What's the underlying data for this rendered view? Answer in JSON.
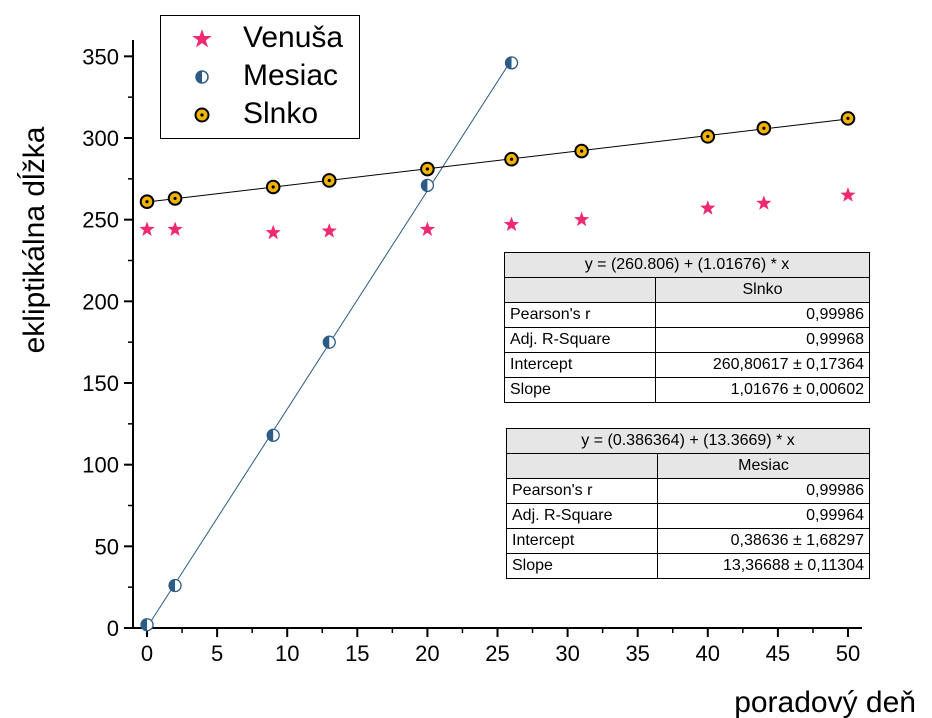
{
  "chart_data": {
    "type": "scatter",
    "xlabel": "poradový deň",
    "ylabel": "ekliptikálna dĺžka",
    "xlim": [
      -1,
      51
    ],
    "ylim": [
      0,
      360
    ],
    "xticks": [
      "0",
      "5",
      "10",
      "15",
      "20",
      "25",
      "30",
      "35",
      "40",
      "45",
      "50"
    ],
    "yticks": [
      "0",
      "50",
      "100",
      "150",
      "200",
      "250",
      "300",
      "350"
    ],
    "legend_position": "top-left",
    "series": [
      {
        "name": "Venuša",
        "marker": "star",
        "color": "#ee2a73",
        "x": [
          0,
          2,
          9,
          13,
          20,
          26,
          31,
          40,
          44,
          50
        ],
        "y": [
          244,
          244,
          242,
          243,
          244,
          247,
          250,
          257,
          260,
          265
        ]
      },
      {
        "name": "Mesiac",
        "marker": "half-filled-circle",
        "color": "#2c5c86",
        "x": [
          0,
          2,
          9,
          13,
          20,
          26
        ],
        "y": [
          2,
          26,
          118,
          175,
          271,
          346
        ],
        "fit": {
          "intercept": 0.386364,
          "slope": 13.3669,
          "x_range": [
            0,
            26
          ],
          "color": "#2c5c86"
        }
      },
      {
        "name": "Slnko",
        "marker": "dotted-circle",
        "color": "#f2b200",
        "x": [
          0,
          2,
          9,
          13,
          20,
          26,
          31,
          40,
          44,
          50
        ],
        "y": [
          261,
          263,
          270,
          274,
          281,
          287,
          292,
          301,
          306,
          312
        ],
        "fit": {
          "intercept": 260.806,
          "slope": 1.01676,
          "x_range": [
            0,
            50
          ],
          "color": "#000000"
        }
      }
    ]
  },
  "fit_tables": [
    {
      "equation": "y = (260.806) + (1.01676) * x",
      "series_name": "Slnko",
      "rows": [
        {
          "label": "Pearson's r",
          "value": "0,99986"
        },
        {
          "label": "Adj. R-Square",
          "value": "0,99968"
        },
        {
          "label": "Intercept",
          "value": "260,80617 ± 0,17364"
        },
        {
          "label": "Slope",
          "value": "1,01676 ± 0,00602"
        }
      ]
    },
    {
      "equation": "y = (0.386364) + (13.3669) * x",
      "series_name": "Mesiac",
      "rows": [
        {
          "label": "Pearson's r",
          "value": "0,99986"
        },
        {
          "label": "Adj. R-Square",
          "value": "0,99964"
        },
        {
          "label": "Intercept",
          "value": "0,38636 ± 1,68297"
        },
        {
          "label": "Slope",
          "value": "13,36688 ± 0,11304"
        }
      ]
    }
  ]
}
